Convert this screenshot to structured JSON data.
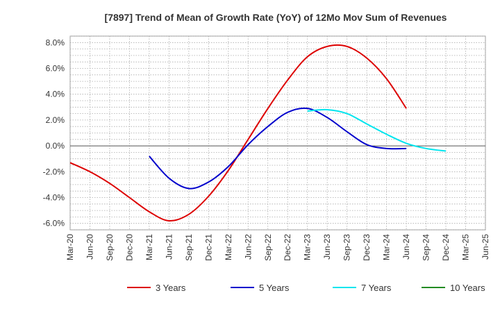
{
  "chart_data": {
    "type": "line",
    "title": "[7897]  Trend of Mean of Growth Rate (YoY) of 12Mo Mov Sum of Revenues",
    "xlabel": "",
    "ylabel": "",
    "ylim": [
      -6.5,
      8.5
    ],
    "y_ticks": [
      -6.0,
      -4.0,
      -2.0,
      0.0,
      2.0,
      4.0,
      6.0,
      8.0
    ],
    "y_tick_labels": [
      "-6.0%",
      "-4.0%",
      "-2.0%",
      "0.0%",
      "2.0%",
      "4.0%",
      "6.0%",
      "8.0%"
    ],
    "x_tick_labels": [
      "Mar-20",
      "Jun-20",
      "Sep-20",
      "Dec-20",
      "Mar-21",
      "Jun-21",
      "Sep-21",
      "Dec-21",
      "Mar-22",
      "Jun-22",
      "Sep-22",
      "Dec-22",
      "Mar-23",
      "Jun-23",
      "Sep-23",
      "Dec-23",
      "Mar-24",
      "Jun-24",
      "Sep-24",
      "Dec-24",
      "Mar-25",
      "Jun-25"
    ],
    "grid": true,
    "legend_position": "bottom",
    "series": [
      {
        "name": "3 Years",
        "color": "#dd0000",
        "start_index": 0,
        "values": [
          -1.3,
          -2.0,
          -2.9,
          -4.0,
          -5.1,
          -5.8,
          -5.3,
          -3.9,
          -1.9,
          0.5,
          2.9,
          5.1,
          6.9,
          7.7,
          7.7,
          6.8,
          5.2,
          2.9
        ]
      },
      {
        "name": "5 Years",
        "color": "#0000cc",
        "start_index": 4,
        "values": [
          -0.8,
          -2.5,
          -3.3,
          -2.8,
          -1.6,
          0.1,
          1.5,
          2.6,
          2.9,
          2.2,
          1.1,
          0.1,
          -0.2,
          -0.2
        ]
      },
      {
        "name": "7 Years",
        "color": "#00e5ee",
        "start_index": 12,
        "values": [
          2.7,
          2.8,
          2.5,
          1.7,
          0.9,
          0.2,
          -0.2,
          -0.4
        ]
      },
      {
        "name": "10 Years",
        "color": "#228b22",
        "start_index": 0,
        "values": []
      }
    ]
  }
}
